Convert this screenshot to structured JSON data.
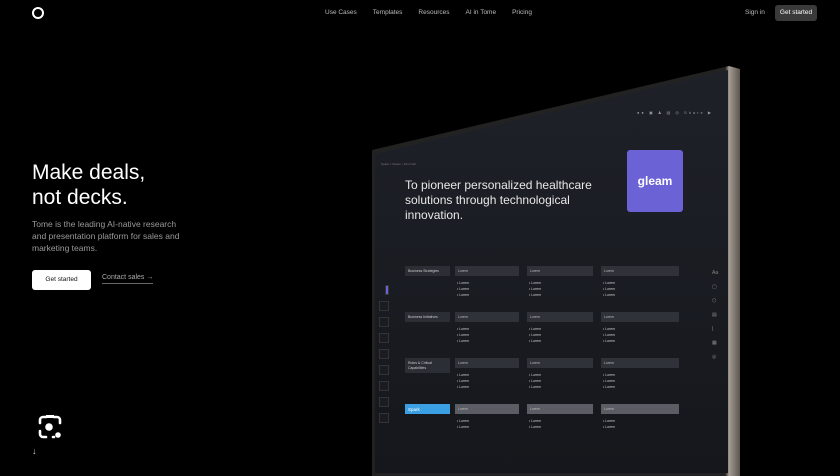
{
  "nav": {
    "links": [
      "Use Cases",
      "Templates",
      "Resources",
      "AI in Tome",
      "Pricing"
    ],
    "sign_in": "Sign in",
    "get_started": "Get started"
  },
  "hero": {
    "title_line1": "Make deals,",
    "title_line2": "not decks.",
    "subtitle": "Tome is the leading AI-native research and presentation platform for sales and marketing teams.",
    "cta": "Get started",
    "contact": "Contact sales →"
  },
  "scroll_icon": "arrow-down-icon",
  "lens_icon": "camera-lens-icon",
  "device": {
    "toolbar": "Share",
    "breadcrumb": "Spark × Gleam • First Call",
    "heading": "To pioneer personalized healthcare solutions through technological innovation.",
    "logo_text": "gleam",
    "logo_color": "#6b62d6",
    "side_label": "Aa",
    "rows": [
      {
        "label": "Business Strategies",
        "cells": [
          "Lorem",
          "Lorem",
          "Lorem"
        ],
        "bullets": [
          [
            "Lorem",
            "Lorem",
            "Lorem"
          ],
          [
            "Lorem",
            "Lorem",
            "Lorem"
          ],
          [
            "Lorem",
            "Lorem",
            "Lorem"
          ]
        ]
      },
      {
        "label": "Business Initiatives",
        "cells": [
          "Lorem",
          "Lorem",
          "Lorem"
        ],
        "bullets": [
          [
            "Lorem",
            "Lorem",
            "Lorem"
          ],
          [
            "Lorem",
            "Lorem",
            "Lorem"
          ],
          [
            "Lorem",
            "Lorem",
            "Lorem"
          ]
        ]
      },
      {
        "label": "Roles & Critical Capabilities",
        "cells": [
          "Lorem",
          "Lorem",
          "Lorem"
        ],
        "bullets": [
          [
            "Lorem",
            "Lorem",
            "Lorem"
          ],
          [
            "Lorem",
            "Lorem",
            "Lorem"
          ],
          [
            "Lorem",
            "Lorem",
            "Lorem"
          ]
        ]
      },
      {
        "label": "Spark",
        "cells": [
          "Lorem",
          "Lorem",
          "Lorem"
        ],
        "bullets": [
          [
            "Lorem",
            "Lorem"
          ],
          [
            "Lorem",
            "Lorem"
          ],
          [
            "Lorem",
            "Lorem"
          ]
        ]
      }
    ]
  }
}
